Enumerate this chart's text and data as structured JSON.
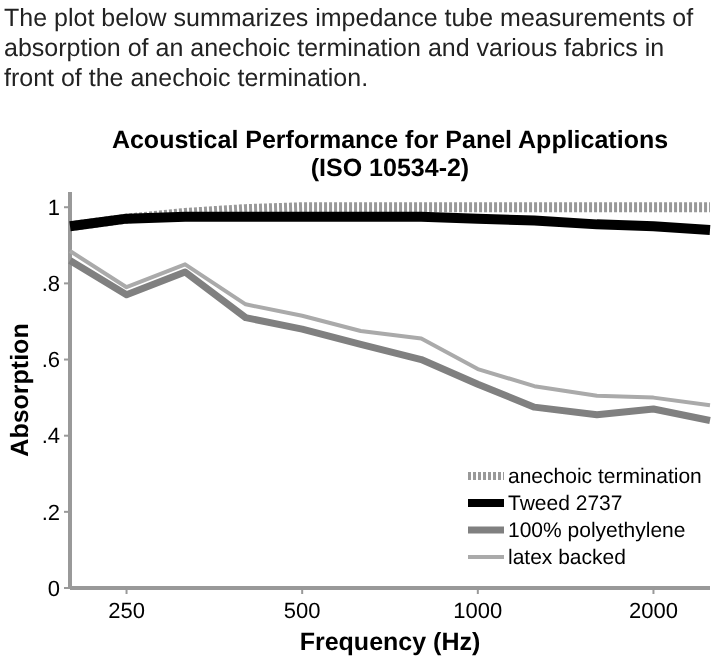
{
  "chart_data": {
    "type": "line",
    "title": "Acoustical Performance for Panel Applications (ISO 10534-2)",
    "annotations": [
      "The plot below summarizes impedance tube measurements of absorption of an anechoic termination and various fabrics in front of the anechoic termination."
    ],
    "xlabel": "Frequency (Hz)",
    "ylabel": "Absorption",
    "x": [
      200,
      250,
      315,
      400,
      500,
      630,
      800,
      1000,
      1250,
      1600,
      2000,
      2500
    ],
    "series": [
      {
        "name": "anechoic termination",
        "color": "#999999",
        "line_style": "dotted",
        "values": [
          0.95,
          0.97,
          0.985,
          0.995,
          1.0,
          1.0,
          1.0,
          1.0,
          1.0,
          1.0,
          1.0,
          1.0
        ]
      },
      {
        "name": "Tweed 2737",
        "color": "#000000",
        "values": [
          0.95,
          0.97,
          0.975,
          0.975,
          0.975,
          0.975,
          0.975,
          0.97,
          0.965,
          0.955,
          0.95,
          0.94
        ]
      },
      {
        "name": "100% polyethylene",
        "color": "#808080",
        "values": [
          0.86,
          0.77,
          0.83,
          0.71,
          0.68,
          0.64,
          0.6,
          0.535,
          0.475,
          0.455,
          0.47,
          0.44
        ]
      },
      {
        "name": "latex backed",
        "color": "#aaaaaa",
        "values": [
          0.885,
          0.79,
          0.85,
          0.745,
          0.715,
          0.675,
          0.655,
          0.575,
          0.53,
          0.505,
          0.5,
          0.48
        ]
      }
    ],
    "log": "x",
    "xlim": [
      200,
      2500
    ],
    "xticks": [
      250,
      500,
      1000,
      2000
    ],
    "ylim": [
      0,
      1.04
    ],
    "yticks": [
      0,
      {
        "value": 0.2,
        "label": ".2"
      },
      {
        "value": 0.4,
        "label": ".4"
      },
      {
        "value": 0.6,
        "label": ".6"
      },
      {
        "value": 0.8,
        "label": ".8"
      },
      1
    ],
    "grid": false,
    "legend": "bottom right"
  }
}
